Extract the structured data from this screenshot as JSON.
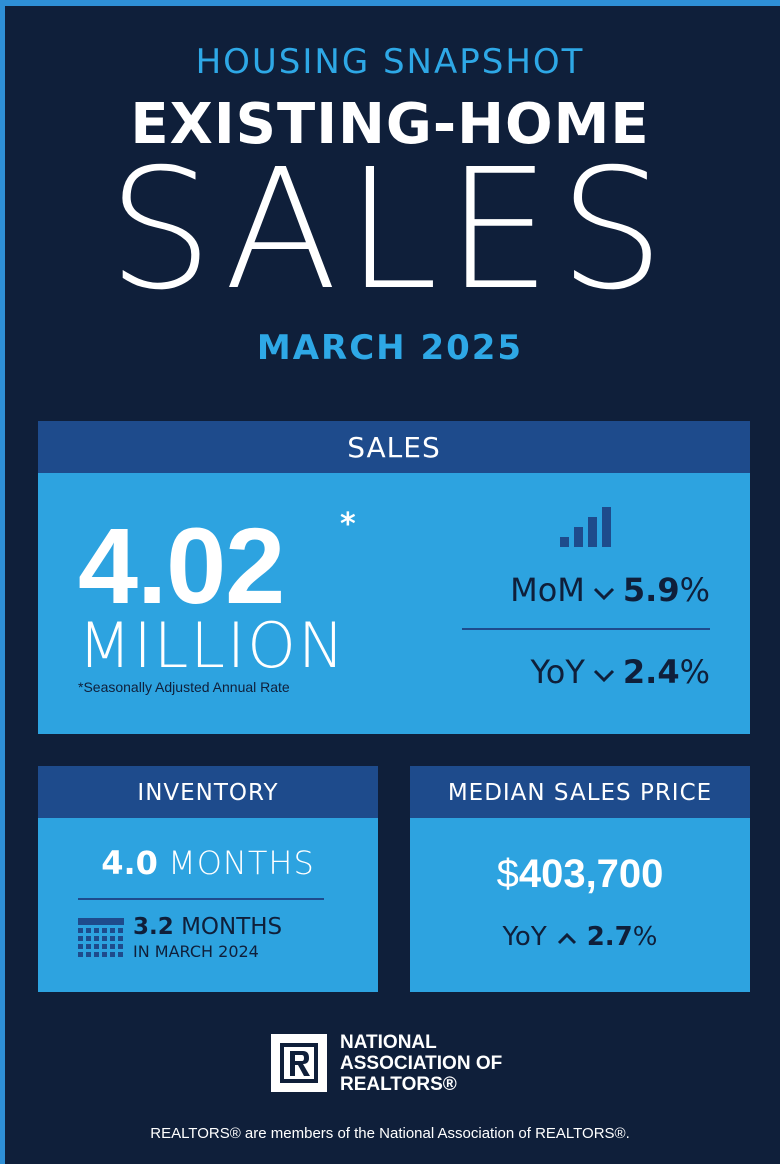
{
  "header": {
    "kicker": "HOUSING SNAPSHOT",
    "headline": "EXISTING-HOME",
    "big_word": "SALES",
    "period": "MARCH 2025"
  },
  "sales": {
    "heading": "SALES",
    "value": "4.02",
    "asterisk": "*",
    "unit": "MILLION",
    "note": "*Seasonally Adjusted Annual Rate",
    "mom": {
      "label": "MoM",
      "direction": "down",
      "value": "5.9",
      "pct": "%"
    },
    "yoy": {
      "label": "YoY",
      "direction": "down",
      "value": "2.4",
      "pct": "%"
    }
  },
  "inventory": {
    "heading": "INVENTORY",
    "value": "4.0",
    "unit": "MONTHS",
    "prev_value": "3.2",
    "prev_unit": "MONTHS",
    "prev_caption": "IN MARCH 2024"
  },
  "median_price": {
    "heading": "MEDIAN SALES PRICE",
    "currency": "$",
    "value": "403,700",
    "yoy": {
      "label": "YoY",
      "direction": "up",
      "value": "2.7",
      "pct": "%"
    }
  },
  "footer": {
    "logo_letter": "R",
    "org_line1": "NATIONAL",
    "org_line2": "ASSOCIATION OF",
    "org_line3": "REALTORS®",
    "disclaimer": "REALTORS® are members of the National Association of REALTORS®."
  },
  "colors": {
    "background": "#0f1f3a",
    "accent_blue": "#2ea8e6",
    "panel_header": "#1e4b8c",
    "panel_body": "#2da3e0"
  },
  "icons": [
    "bar-chart-icon",
    "chevron-down-icon",
    "chevron-up-icon",
    "calendar-icon",
    "realtor-logo-icon"
  ]
}
